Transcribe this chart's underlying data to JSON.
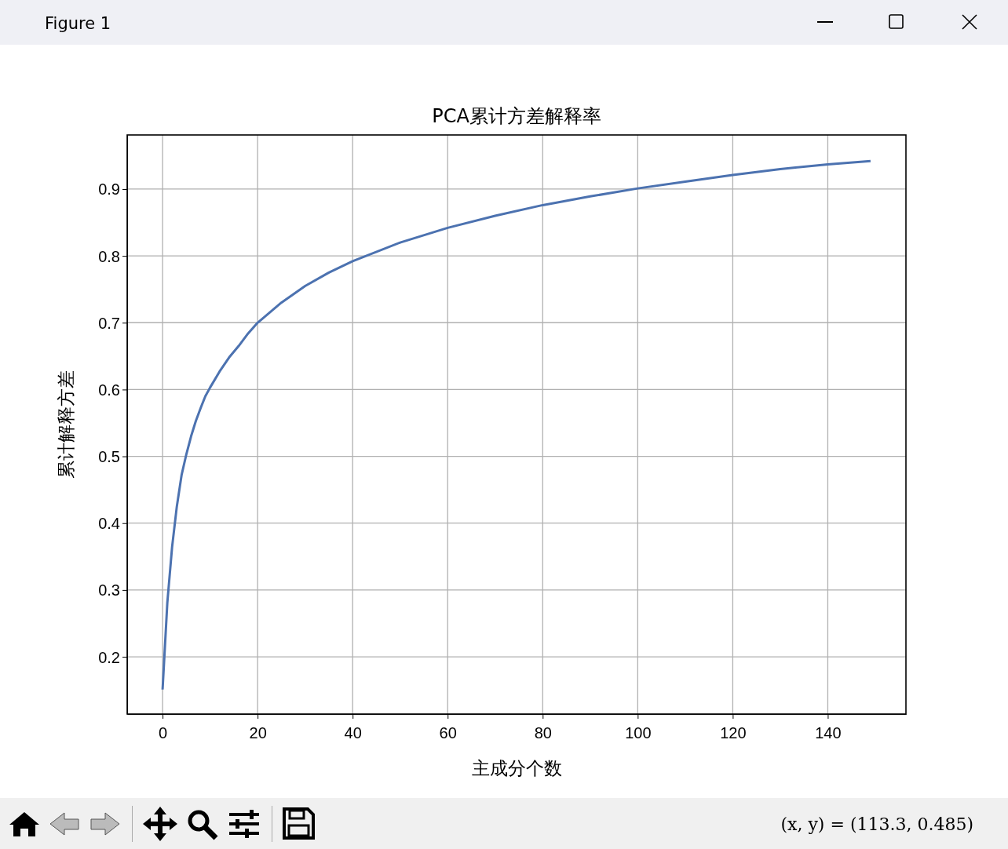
{
  "chart_data": {
    "type": "line",
    "title": "PCA累计方差解释率",
    "xlabel": "主成分个数",
    "ylabel": "累计解释方差",
    "annotations": [
      "Figure 1",
      "(x, y) = (113.3, 0.485)"
    ],
    "x": [
      0,
      1,
      2,
      3,
      4,
      5,
      6,
      7,
      8,
      9,
      10,
      12,
      14,
      16,
      18,
      20,
      25,
      30,
      35,
      40,
      50,
      60,
      70,
      80,
      90,
      100,
      110,
      120,
      130,
      140,
      149
    ],
    "series": [
      {
        "color": "#4c72b0",
        "values": [
          0.151,
          0.281,
          0.364,
          0.425,
          0.472,
          0.503,
          0.53,
          0.553,
          0.572,
          0.59,
          0.603,
          0.627,
          0.648,
          0.665,
          0.684,
          0.7,
          0.73,
          0.755,
          0.775,
          0.792,
          0.82,
          0.842,
          0.86,
          0.876,
          0.889,
          0.901,
          0.911,
          0.921,
          0.93,
          0.937,
          0.942
        ]
      }
    ],
    "xlim": [
      -7.45,
      156.45
    ],
    "ylim": [
      0.1143,
      0.981
    ],
    "xticks": [
      0,
      20,
      40,
      60,
      80,
      100,
      120,
      140
    ],
    "yticks": [
      0.2,
      0.3,
      0.4,
      0.5,
      0.6,
      0.7,
      0.8,
      0.9
    ],
    "grid": true,
    "marker": "none",
    "line_style": "solid"
  }
}
